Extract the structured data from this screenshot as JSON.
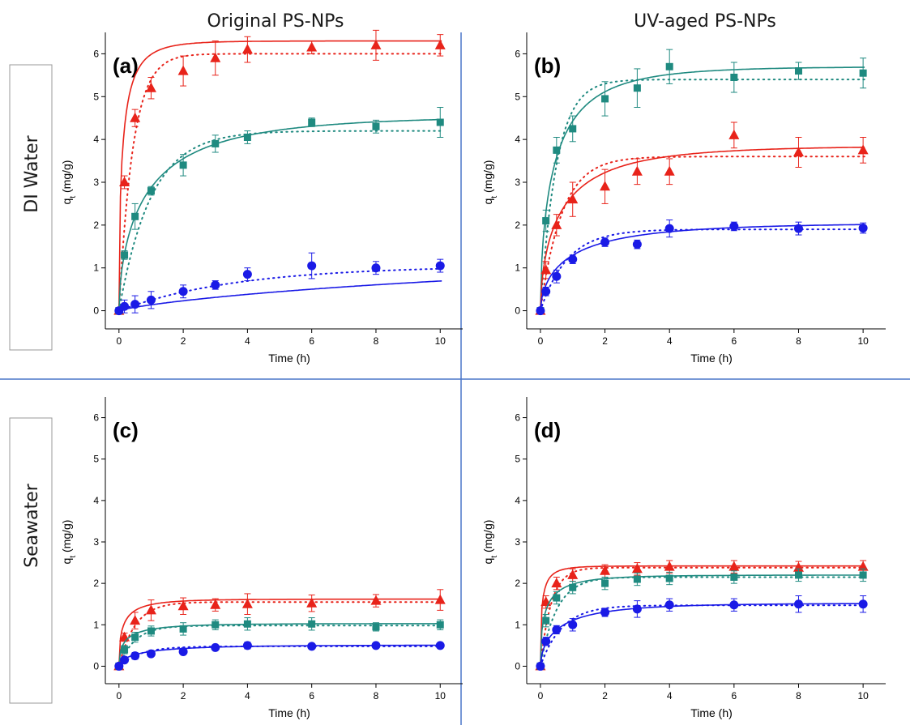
{
  "column_headers": [
    "Original PS-NPs",
    "UV-aged PS-NPs"
  ],
  "row_headers": [
    "DI Water",
    "Seawater"
  ],
  "colors": {
    "red": "#e8231a",
    "teal": "#1f8a80",
    "blue": "#1a1ae6",
    "divider": "#4a76c9"
  },
  "chart_data": [
    {
      "type": "scatter",
      "label": "(a)",
      "xlabel": "Time (h)",
      "ylabel": "q",
      "ylabel_sub": "t",
      "ylabel_unit": " (mg/g)",
      "xlim": [
        -0.5,
        10.7
      ],
      "ylim": [
        -0.5,
        6.5
      ],
      "xticks": [
        0,
        2,
        4,
        6,
        8,
        10
      ],
      "yticks": [
        0,
        1,
        2,
        3,
        4,
        5,
        6
      ],
      "x": [
        0,
        0.17,
        0.5,
        1,
        2,
        3,
        4,
        6,
        8,
        10
      ],
      "series": [
        {
          "color": "red",
          "marker": "triangle",
          "values": [
            0,
            3.0,
            4.5,
            5.2,
            5.6,
            5.9,
            6.1,
            6.15,
            6.2,
            6.2
          ],
          "errors": [
            0.05,
            0.15,
            0.2,
            0.25,
            0.35,
            0.4,
            0.3,
            0.15,
            0.35,
            0.25
          ],
          "fit_solid": [
            6.3,
            3.0,
            0.55
          ],
          "fit_dotted": [
            6.0,
            2.3,
            1.0
          ]
        },
        {
          "color": "teal",
          "marker": "square",
          "values": [
            0,
            1.3,
            2.2,
            2.8,
            3.4,
            3.9,
            4.05,
            4.4,
            4.3,
            4.4
          ],
          "errors": [
            0.05,
            0.1,
            0.3,
            0.1,
            0.25,
            0.2,
            0.15,
            0.1,
            0.15,
            0.35
          ],
          "fit_solid": [
            4.55,
            1.0,
            0.6
          ],
          "fit_dotted": [
            4.2,
            1.0,
            1.0
          ]
        },
        {
          "color": "blue",
          "marker": "circle",
          "values": [
            0,
            0.1,
            0.15,
            0.25,
            0.45,
            0.6,
            0.85,
            1.05,
            1.0,
            1.05
          ],
          "errors": [
            0.05,
            0.15,
            0.2,
            0.2,
            0.15,
            0.1,
            0.15,
            0.3,
            0.15,
            0.15
          ],
          "fit_solid": [
            1.6,
            0.09,
            0.8
          ],
          "fit_dotted": [
            1.05,
            0.27,
            1.0
          ]
        }
      ]
    },
    {
      "type": "scatter",
      "label": "(b)",
      "xlabel": "Time (h)",
      "ylabel": "q",
      "ylabel_sub": "t",
      "ylabel_unit": " (mg/g)",
      "xlim": [
        -0.5,
        10.7
      ],
      "ylim": [
        -0.5,
        6.5
      ],
      "xticks": [
        0,
        2,
        4,
        6,
        8,
        10
      ],
      "yticks": [
        0,
        1,
        2,
        3,
        4,
        5,
        6
      ],
      "x": [
        0,
        0.17,
        0.5,
        1,
        2,
        3,
        4,
        6,
        8,
        10
      ],
      "series": [
        {
          "color": "teal",
          "marker": "square",
          "values": [
            0,
            2.1,
            3.75,
            4.25,
            4.95,
            5.2,
            5.7,
            5.45,
            5.6,
            5.55
          ],
          "errors": [
            0.05,
            0.25,
            0.3,
            0.3,
            0.4,
            0.45,
            0.4,
            0.35,
            0.2,
            0.35
          ],
          "fit_solid": [
            5.7,
            1.5,
            0.6
          ],
          "fit_dotted": [
            5.4,
            2.0,
            1.0
          ]
        },
        {
          "color": "red",
          "marker": "triangle",
          "values": [
            0,
            0.95,
            2.0,
            2.6,
            2.9,
            3.25,
            3.25,
            4.1,
            3.7,
            3.75
          ],
          "errors": [
            0.05,
            0.2,
            0.25,
            0.4,
            0.4,
            0.3,
            0.3,
            0.3,
            0.35,
            0.3
          ],
          "fit_solid": [
            3.85,
            1.2,
            0.6
          ],
          "fit_dotted": [
            3.6,
            1.5,
            1.0
          ]
        },
        {
          "color": "blue",
          "marker": "circle",
          "values": [
            0,
            0.45,
            0.8,
            1.2,
            1.6,
            1.55,
            1.92,
            1.97,
            1.92,
            1.93
          ],
          "errors": [
            0.05,
            0.1,
            0.15,
            0.1,
            0.1,
            0.1,
            0.2,
            0.1,
            0.15,
            0.12
          ],
          "fit_solid": [
            2.05,
            1.0,
            0.6
          ],
          "fit_dotted": [
            1.9,
            1.2,
            1.0
          ]
        }
      ]
    },
    {
      "type": "scatter",
      "label": "(c)",
      "xlabel": "Time (h)",
      "ylabel": "q",
      "ylabel_sub": "t",
      "ylabel_unit": " (mg/g)",
      "xlim": [
        -0.5,
        10.7
      ],
      "ylim": [
        -0.5,
        6.5
      ],
      "xticks": [
        0,
        2,
        4,
        6,
        8,
        10
      ],
      "yticks": [
        0,
        1,
        2,
        3,
        4,
        5,
        6
      ],
      "x": [
        0,
        0.17,
        0.5,
        1,
        2,
        3,
        4,
        6,
        8,
        10
      ],
      "series": [
        {
          "color": "red",
          "marker": "triangle",
          "values": [
            0,
            0.7,
            1.1,
            1.35,
            1.45,
            1.48,
            1.5,
            1.52,
            1.58,
            1.6
          ],
          "errors": [
            0.05,
            0.1,
            0.2,
            0.25,
            0.2,
            0.15,
            0.25,
            0.2,
            0.15,
            0.25
          ],
          "fit_solid": [
            1.62,
            2.5,
            0.5
          ],
          "fit_dotted": [
            1.55,
            2.0,
            1.0
          ]
        },
        {
          "color": "teal",
          "marker": "square",
          "values": [
            0,
            0.4,
            0.7,
            0.85,
            0.9,
            1.0,
            1.02,
            1.02,
            0.95,
            1.0
          ],
          "errors": [
            0.05,
            0.1,
            0.12,
            0.12,
            0.15,
            0.12,
            0.15,
            0.15,
            0.1,
            0.12
          ],
          "fit_solid": [
            1.03,
            2.0,
            0.5
          ],
          "fit_dotted": [
            0.98,
            2.0,
            1.0
          ]
        },
        {
          "color": "blue",
          "marker": "circle",
          "values": [
            0,
            0.15,
            0.25,
            0.3,
            0.35,
            0.45,
            0.5,
            0.48,
            0.5,
            0.5
          ],
          "errors": [
            0.03,
            0.05,
            0.08,
            0.05,
            0.05,
            0.05,
            0.08,
            0.05,
            0.05,
            0.05
          ],
          "fit_solid": [
            0.51,
            1.2,
            0.6
          ],
          "fit_dotted": [
            0.48,
            1.5,
            1.0
          ]
        }
      ]
    },
    {
      "type": "scatter",
      "label": "(d)",
      "xlabel": "Time (h)",
      "ylabel": "q",
      "ylabel_sub": "t",
      "ylabel_unit": " (mg/g)",
      "xlim": [
        -0.5,
        10.7
      ],
      "ylim": [
        -0.5,
        6.5
      ],
      "xticks": [
        0,
        2,
        4,
        6,
        8,
        10
      ],
      "yticks": [
        0,
        1,
        2,
        3,
        4,
        5,
        6
      ],
      "x": [
        0,
        0.17,
        0.5,
        1,
        2,
        3,
        4,
        6,
        8,
        10
      ],
      "series": [
        {
          "color": "red",
          "marker": "triangle",
          "values": [
            0,
            1.55,
            2.0,
            2.2,
            2.3,
            2.35,
            2.4,
            2.4,
            2.38,
            2.4
          ],
          "errors": [
            0.05,
            0.15,
            0.15,
            0.15,
            0.15,
            0.15,
            0.15,
            0.15,
            0.15,
            0.15
          ],
          "fit_solid": [
            2.42,
            4.0,
            0.5
          ],
          "fit_dotted": [
            2.38,
            3.0,
            1.0
          ]
        },
        {
          "color": "teal",
          "marker": "square",
          "values": [
            0,
            1.1,
            1.65,
            1.9,
            2.0,
            2.1,
            2.12,
            2.15,
            2.2,
            2.2
          ],
          "errors": [
            0.05,
            0.15,
            0.15,
            0.15,
            0.15,
            0.15,
            0.15,
            0.15,
            0.15,
            0.15
          ],
          "fit_solid": [
            2.2,
            2.3,
            0.5
          ],
          "fit_dotted": [
            2.15,
            2.0,
            1.0
          ]
        },
        {
          "color": "blue",
          "marker": "circle",
          "values": [
            0,
            0.6,
            0.88,
            1.0,
            1.3,
            1.38,
            1.48,
            1.48,
            1.5,
            1.5
          ],
          "errors": [
            0.05,
            0.1,
            0.1,
            0.15,
            0.1,
            0.2,
            0.15,
            0.15,
            0.2,
            0.2
          ],
          "fit_solid": [
            1.52,
            1.3,
            0.6
          ],
          "fit_dotted": [
            1.47,
            1.5,
            1.0
          ]
        }
      ]
    }
  ]
}
